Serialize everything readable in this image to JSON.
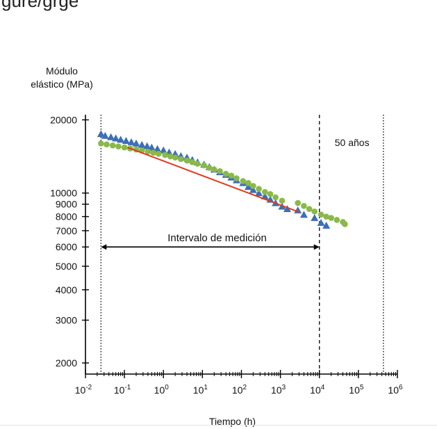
{
  "header": {
    "partial_title": "gure/grge"
  },
  "chart_data": {
    "type": "scatter",
    "ylabel_line1": "Módulo",
    "ylabel_line2": "elástico (MPa)",
    "xlabel": "Tiempo (h)",
    "x_scale": "log",
    "y_scale": "log",
    "xlim": [
      0.01,
      1000000
    ],
    "ylim": [
      1800,
      21000
    ],
    "y_ticks": [
      20000,
      10000,
      9000,
      8000,
      7000,
      6000,
      5000,
      4000,
      3000,
      2000
    ],
    "y_tick_labels": [
      "20000",
      "10000",
      "9000",
      "8000",
      "7000",
      "6000",
      "5000",
      "4000",
      "3000",
      "2000"
    ],
    "x_ticks": [
      {
        "base": "10",
        "exp": "-2",
        "value": 0.01
      },
      {
        "base": "10",
        "exp": "-1",
        "value": 0.1
      },
      {
        "base": "10",
        "exp": "0",
        "value": 1
      },
      {
        "base": "10",
        "exp": "1",
        "value": 10
      },
      {
        "base": "10",
        "exp": "2",
        "value": 100
      },
      {
        "base": "10",
        "exp": "3",
        "value": 1000
      },
      {
        "base": "10",
        "exp": "4",
        "value": 10000
      },
      {
        "base": "10",
        "exp": "5",
        "value": 100000
      },
      {
        "base": "10",
        "exp": "6",
        "value": 1000000
      }
    ],
    "series": [
      {
        "marker": "triangle",
        "color": "#3d6fb6",
        "points": [
          [
            0.025,
            17500
          ],
          [
            0.032,
            17200
          ],
          [
            0.045,
            17000
          ],
          [
            0.06,
            16800
          ],
          [
            0.08,
            16600
          ],
          [
            0.11,
            16400
          ],
          [
            0.15,
            16200
          ],
          [
            0.2,
            16000
          ],
          [
            0.28,
            15800
          ],
          [
            0.38,
            15600
          ],
          [
            0.5,
            15400
          ],
          [
            0.7,
            15200
          ],
          [
            1.0,
            15000
          ],
          [
            1.4,
            14700
          ],
          [
            2.0,
            14500
          ],
          [
            2.8,
            14200
          ],
          [
            4.0,
            14000
          ],
          [
            5.5,
            13700
          ],
          [
            7.5,
            13400
          ],
          [
            11,
            13100
          ],
          [
            15,
            12800
          ],
          [
            20,
            12500
          ],
          [
            28,
            12200
          ],
          [
            40,
            11900
          ],
          [
            55,
            11600
          ],
          [
            75,
            11300
          ],
          [
            110,
            11000
          ],
          [
            150,
            10600
          ],
          [
            200,
            10300
          ],
          [
            280,
            10000
          ],
          [
            400,
            9700
          ],
          [
            550,
            9400
          ],
          [
            750,
            9100
          ],
          [
            1100,
            8800
          ],
          [
            1500,
            8600
          ],
          [
            2800,
            8500
          ],
          [
            4000,
            8150
          ],
          [
            7500,
            7900
          ],
          [
            11000,
            7550
          ],
          [
            15000,
            7350
          ]
        ]
      },
      {
        "marker": "circle",
        "color": "#8ab84a",
        "points": [
          [
            0.025,
            16000
          ],
          [
            0.035,
            15850
          ],
          [
            0.05,
            15700
          ],
          [
            0.07,
            15550
          ],
          [
            0.1,
            15400
          ],
          [
            0.14,
            15250
          ],
          [
            0.2,
            15100
          ],
          [
            0.28,
            14950
          ],
          [
            0.4,
            14800
          ],
          [
            0.55,
            14650
          ],
          [
            0.75,
            14500
          ],
          [
            1.1,
            14350
          ],
          [
            1.5,
            14150
          ],
          [
            2.0,
            14000
          ],
          [
            2.8,
            13800
          ],
          [
            4.0,
            13600
          ],
          [
            5.5,
            13400
          ],
          [
            7.5,
            13200
          ],
          [
            11,
            13000
          ],
          [
            15,
            12700
          ],
          [
            20,
            12500
          ],
          [
            28,
            12300
          ],
          [
            40,
            12000
          ],
          [
            55,
            11800
          ],
          [
            75,
            11500
          ],
          [
            110,
            11200
          ],
          [
            150,
            11000
          ],
          [
            200,
            10700
          ],
          [
            280,
            10400
          ],
          [
            400,
            10100
          ],
          [
            550,
            9900
          ],
          [
            750,
            9600
          ],
          [
            1100,
            9300
          ],
          [
            2800,
            9100
          ],
          [
            4000,
            8850
          ],
          [
            5500,
            8600
          ],
          [
            7500,
            8400
          ],
          [
            11000,
            8150
          ],
          [
            15000,
            8000
          ],
          [
            20000,
            7900
          ],
          [
            28000,
            7750
          ],
          [
            40000,
            7600
          ],
          [
            45000,
            7450
          ]
        ]
      }
    ],
    "fit_line": {
      "color": "#e03a1e",
      "from": [
        0.12,
        15400
      ],
      "to": [
        3000,
        8350
      ]
    },
    "vertical_lines": [
      {
        "x": 0.025,
        "style": "dotted"
      },
      {
        "x": 10000,
        "style": "dashed"
      },
      {
        "x": 438000,
        "style": "dotted"
      }
    ],
    "measurement_interval": {
      "label": "Intervalo de medición",
      "from": 0.025,
      "to": 10000,
      "y": 6000
    },
    "annotation_50y": {
      "label": "50 años"
    }
  }
}
